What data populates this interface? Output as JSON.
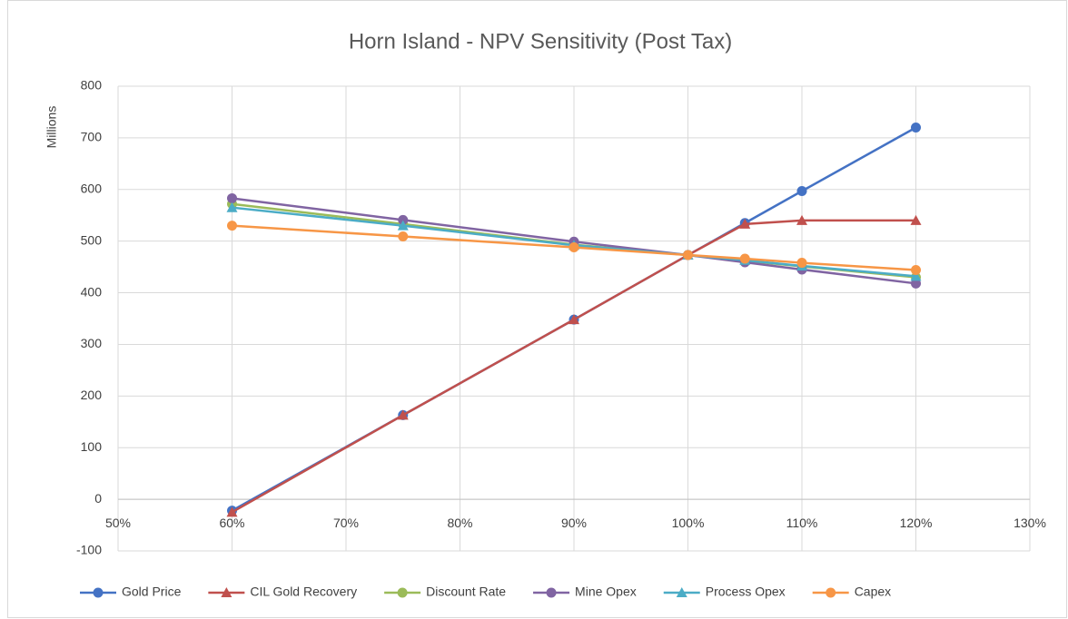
{
  "chart_data": {
    "type": "line",
    "title": "Horn Island - NPV Sensitivity (Post Tax)",
    "y_label": "Millions",
    "x": [
      60,
      75,
      90,
      100,
      105,
      110,
      120
    ],
    "xlim": [
      50,
      130
    ],
    "xticks": [
      {
        "value": 50,
        "label": "50%"
      },
      {
        "value": 60,
        "label": "60%"
      },
      {
        "value": 70,
        "label": "70%"
      },
      {
        "value": 80,
        "label": "80%"
      },
      {
        "value": 90,
        "label": "90%"
      },
      {
        "value": 100,
        "label": "100%"
      },
      {
        "value": 110,
        "label": "110%"
      },
      {
        "value": 120,
        "label": "120%"
      },
      {
        "value": 130,
        "label": "130%"
      }
    ],
    "ylim": [
      -100,
      800
    ],
    "yticks": [
      -100,
      0,
      100,
      200,
      300,
      400,
      500,
      600,
      700,
      800
    ],
    "grid": true,
    "legend": "bottom",
    "series": [
      {
        "name": "Gold Price",
        "color": "#4472c4",
        "marker": "circle",
        "values": [
          -22,
          163,
          348,
          473,
          535,
          597,
          720
        ]
      },
      {
        "name": "CIL Gold Recovery",
        "color": "#c0504d",
        "marker": "triangle",
        "values": [
          -25,
          163,
          348,
          473,
          533,
          540,
          540
        ]
      },
      {
        "name": "Discount Rate",
        "color": "#9bbb59",
        "marker": "circle",
        "values": [
          572,
          533,
          493,
          473,
          462,
          451,
          430
        ]
      },
      {
        "name": "Mine Opex",
        "color": "#8064a2",
        "marker": "circle",
        "values": [
          583,
          541,
          499,
          473,
          459,
          445,
          418
        ]
      },
      {
        "name": "Process Opex",
        "color": "#4bacc6",
        "marker": "triangle",
        "values": [
          565,
          530,
          492,
          473,
          463,
          452,
          432
        ]
      },
      {
        "name": "Capex",
        "color": "#f79646",
        "marker": "circle",
        "values": [
          530,
          509,
          488,
          473,
          466,
          458,
          444
        ]
      }
    ]
  }
}
